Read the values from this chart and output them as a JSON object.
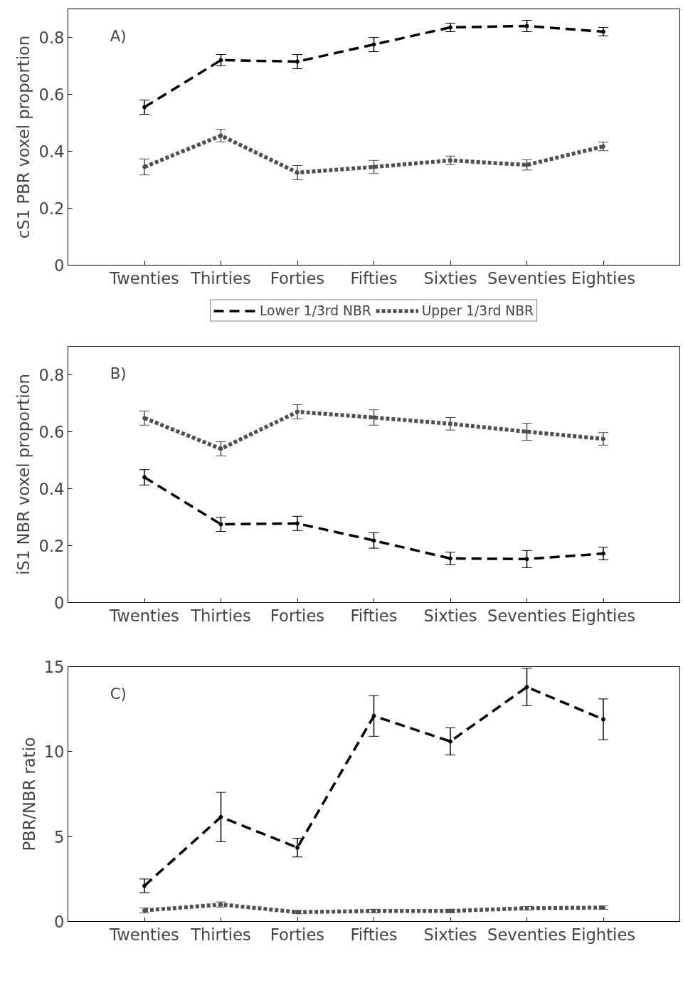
{
  "chart_data": [
    {
      "type": "line",
      "annotations": [
        "A)"
      ],
      "ylabel": "cS1 PBR voxel proportion",
      "categories": [
        "Twenties",
        "Thirties",
        "Forties",
        "Fifties",
        "Sixties",
        "Seventies",
        "Eighties"
      ],
      "ylim": [
        0,
        0.9
      ],
      "yticks": [
        0,
        0.2,
        0.4,
        0.6,
        0.8
      ],
      "grid": false,
      "legend": "bottom",
      "marker": "circle",
      "series": [
        {
          "name": "Lower 1/3rd NBR",
          "color": "#000000",
          "line_style": "dashed",
          "values": [
            0.555,
            0.72,
            0.715,
            0.775,
            0.835,
            0.84,
            0.82
          ],
          "errors": [
            0.025,
            0.02,
            0.025,
            0.025,
            0.015,
            0.02,
            0.015
          ]
        },
        {
          "name": "Upper 1/3rd NBR",
          "color": "#505050",
          "line_style": "dotted",
          "values": [
            0.345,
            0.455,
            0.325,
            0.345,
            0.368,
            0.352,
            0.417
          ],
          "errors": [
            0.028,
            0.022,
            0.025,
            0.023,
            0.015,
            0.018,
            0.015
          ]
        }
      ]
    },
    {
      "type": "line",
      "annotations": [
        "B)"
      ],
      "ylabel": "iS1 NBR voxel proportion",
      "categories": [
        "Twenties",
        "Thirties",
        "Forties",
        "Fifties",
        "Sixties",
        "Seventies",
        "Eighties"
      ],
      "ylim": [
        0,
        0.9
      ],
      "yticks": [
        0,
        0.2,
        0.4,
        0.6,
        0.8
      ],
      "grid": false,
      "legend": false,
      "marker": "circle",
      "series": [
        {
          "color": "#000000",
          "line_style": "dashed",
          "values": [
            0.44,
            0.275,
            0.278,
            0.218,
            0.155,
            0.153,
            0.172
          ],
          "errors": [
            0.027,
            0.025,
            0.025,
            0.027,
            0.022,
            0.03,
            0.022
          ]
        },
        {
          "color": "#505050",
          "line_style": "dotted",
          "values": [
            0.648,
            0.54,
            0.67,
            0.65,
            0.628,
            0.6,
            0.575
          ],
          "errors": [
            0.025,
            0.025,
            0.025,
            0.027,
            0.022,
            0.03,
            0.022
          ]
        }
      ]
    },
    {
      "type": "line",
      "annotations": [
        "C)"
      ],
      "ylabel": "PBR/NBR ratio",
      "categories": [
        "Twenties",
        "Thirties",
        "Forties",
        "Fifties",
        "Sixties",
        "Seventies",
        "Eighties"
      ],
      "ylim": [
        0,
        15
      ],
      "yticks": [
        0,
        5,
        10,
        15
      ],
      "grid": false,
      "legend": false,
      "marker": "circle",
      "series": [
        {
          "color": "#000000",
          "line_style": "dashed",
          "values": [
            2.1,
            6.15,
            4.35,
            12.1,
            10.6,
            13.8,
            11.9
          ],
          "errors": [
            [
              1.7,
              2.5
            ],
            [
              4.7,
              7.6
            ],
            [
              3.8,
              4.9
            ],
            [
              10.9,
              13.3
            ],
            [
              9.8,
              11.4
            ],
            [
              12.7,
              14.9
            ],
            [
              10.7,
              13.1
            ]
          ]
        },
        {
          "color": "#505050",
          "line_style": "dotted",
          "values": [
            0.65,
            1.0,
            0.55,
            0.62,
            0.62,
            0.78,
            0.82
          ],
          "errors": [
            0.15,
            0.15,
            0.1,
            0.1,
            0.1,
            0.1,
            0.1
          ]
        }
      ]
    }
  ]
}
